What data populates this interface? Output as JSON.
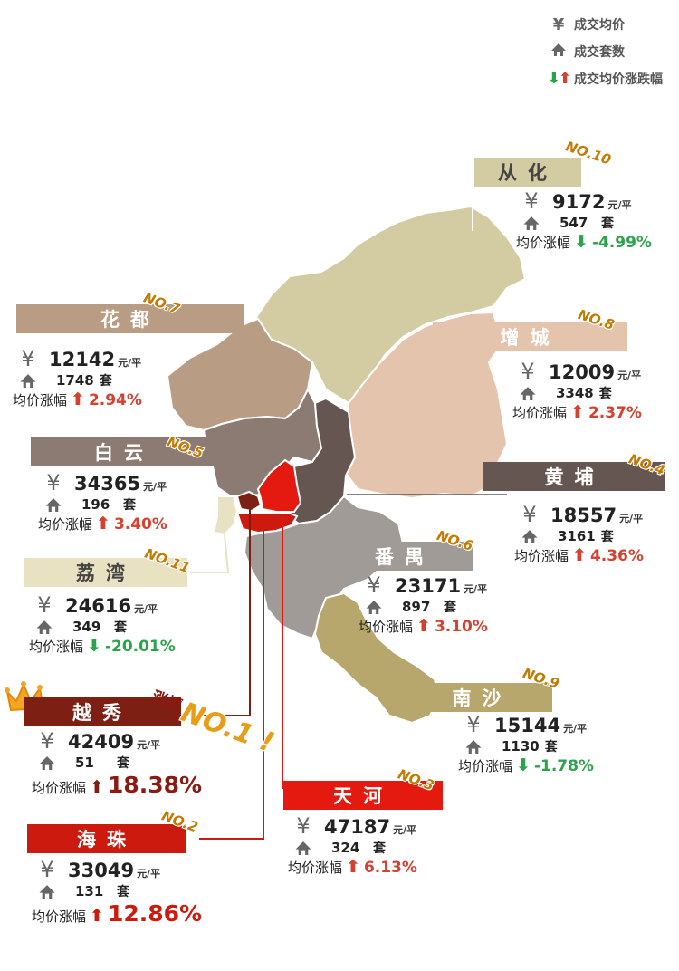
{
  "legend": {
    "price_icon": "yen-icon",
    "price": "成交均价",
    "count_icon": "house-icon",
    "count": "成交套数",
    "change_icon": "up-down-arrows-icon",
    "change": "成交均价涨跌幅"
  },
  "labels": {
    "change": "均价涨幅",
    "unit": "元/平",
    "tao": "套",
    "zhangfu": "涨幅",
    "yen": "¥"
  },
  "colors": {
    "conghua": "#d3cba1",
    "zengcheng": "#e5c4ad",
    "huadu": "#b99c84",
    "baiyun": "#8c7b73",
    "huangpu": "#655651",
    "panyu": "#a19b98",
    "nansha": "#b8a76d",
    "liwan": "#e8e1c2",
    "yuexiu": "#7d1f12",
    "haizhu": "#cc1b0e",
    "tianhe": "#e41a10",
    "up": "#d6402f",
    "down": "#2aa44a",
    "rank": "#c47a00",
    "rank_top": "#e79e16"
  },
  "districts": {
    "conghua": {
      "name": "从化",
      "rank": "NO.10",
      "price": "9172",
      "count": "547",
      "trend": "down",
      "change": "-4.99%"
    },
    "zengcheng": {
      "name": "增城",
      "rank": "NO.8",
      "price": "12009",
      "count": "3348",
      "trend": "up",
      "change": "2.37%"
    },
    "huadu": {
      "name": "花都",
      "rank": "NO.7",
      "price": "12142",
      "count": "1748",
      "trend": "up",
      "change": "2.94%"
    },
    "baiyun": {
      "name": "白云",
      "rank": "NO.5",
      "price": "34365",
      "count": "196",
      "trend": "up",
      "change": "3.40%"
    },
    "huangpu": {
      "name": "黄埔",
      "rank": "NO.4",
      "price": "18557",
      "count": "3161",
      "trend": "up",
      "change": "4.36%"
    },
    "panyu": {
      "name": "番禺",
      "rank": "NO.6",
      "price": "23171",
      "count": "897",
      "trend": "up",
      "change": "3.10%"
    },
    "liwan": {
      "name": "荔湾",
      "rank": "NO.11",
      "price": "24616",
      "count": "349",
      "trend": "down",
      "change": "-20.01%"
    },
    "yuexiu": {
      "name": "越秀",
      "rank": "NO.1 !",
      "price": "42409",
      "count": "51",
      "trend": "up",
      "change": "18.38%"
    },
    "nansha": {
      "name": "南沙",
      "rank": "NO.9",
      "price": "15144",
      "count": "1130",
      "trend": "down",
      "change": "-1.78%"
    },
    "tianhe": {
      "name": "天河",
      "rank": "NO.3",
      "price": "47187",
      "count": "324",
      "trend": "up",
      "change": "6.13%"
    },
    "haizhu": {
      "name": "海珠",
      "rank": "NO.2",
      "price": "33049",
      "count": "131",
      "trend": "up",
      "change": "12.86%"
    }
  }
}
